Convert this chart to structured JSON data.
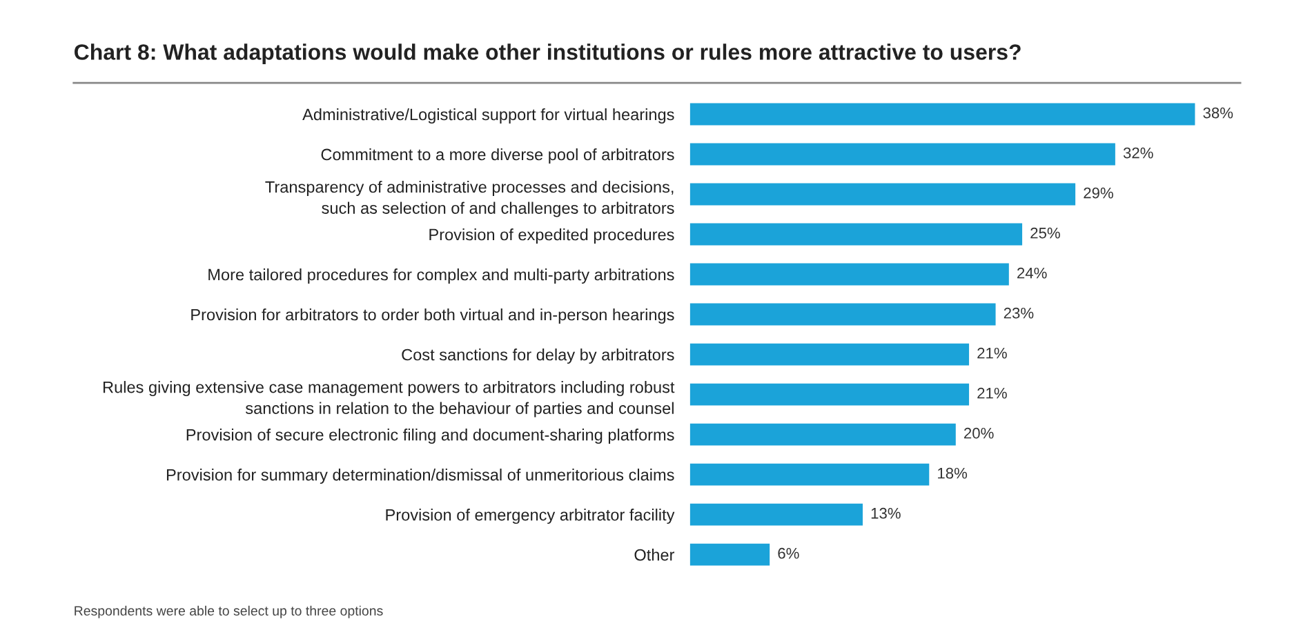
{
  "chart_data": {
    "type": "bar",
    "orientation": "horizontal",
    "title": "Chart 8: What adaptations would make other institutions or rules more attractive to users?",
    "categories": [
      "Administrative/Logistical support for virtual hearings",
      "Commitment to a more diverse pool of arbitrators",
      "Transparency of administrative processes and decisions,\nsuch as selection of and challenges to arbitrators",
      "Provision of expedited procedures",
      "More tailored procedures for complex and multi-party arbitrations",
      "Provision for arbitrators to order both virtual and in-person hearings",
      "Cost sanctions for delay by arbitrators",
      "Rules giving extensive case management powers to arbitrators including robust\nsanctions in relation to the behaviour of parties and counsel",
      "Provision of secure electronic filing and document-sharing platforms",
      "Provision for summary determination/dismissal of unmeritorious claims",
      "Provision of emergency arbitrator facility",
      "Other"
    ],
    "values": [
      38,
      32,
      29,
      25,
      24,
      23,
      21,
      21,
      20,
      18,
      13,
      6
    ],
    "value_labels": [
      "38%",
      "32%",
      "29%",
      "25%",
      "24%",
      "23%",
      "21%",
      "21%",
      "20%",
      "18%",
      "13%",
      "6%"
    ],
    "color": "#1ba3d9",
    "annotations": [
      "Respondents were able to select up to three options"
    ]
  }
}
